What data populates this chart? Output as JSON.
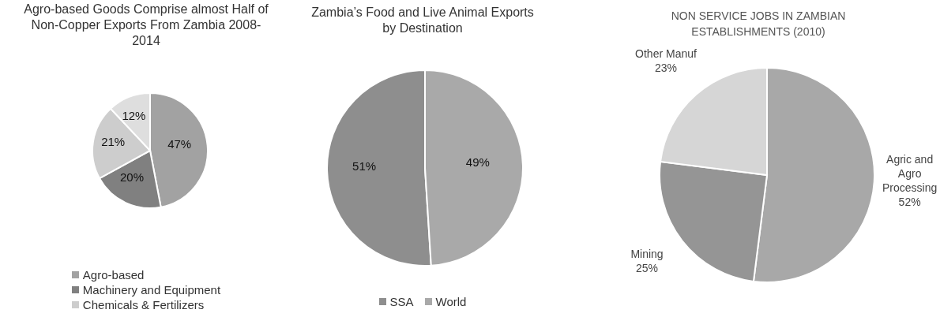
{
  "chart_data": [
    {
      "type": "pie",
      "title": "Agro-based Goods Comprise almost Half of Non-Copper Exports From Zambia 2008-2014",
      "categories": [
        "Agro-based",
        "Machinery and Equipment",
        "Chemicals & Fertilizers",
        null
      ],
      "values": [
        47,
        20,
        21,
        12
      ],
      "colors": [
        "#a2a2a2",
        "#808080",
        "#cdcdcd",
        "#dedede"
      ],
      "value_labels": [
        "47%",
        "20%",
        "21%",
        "12%"
      ],
      "legend": "bottom"
    },
    {
      "type": "pie",
      "title": "Zambia’s Food and Live Animal Exports by Destination",
      "categories": [
        "SSA",
        "World"
      ],
      "values": [
        51,
        49
      ],
      "colors": [
        "#8e8e8e",
        "#a9a9a9"
      ],
      "value_labels": [
        "51%",
        "49%"
      ],
      "legend": "bottom"
    },
    {
      "type": "pie",
      "title": "NON SERVICE JOBS IN ZAMBIAN ESTABLISHMENTS (2010)",
      "categories": [
        "Agric and Agro Processing",
        "Mining",
        "Other Manuf"
      ],
      "values": [
        52,
        25,
        23
      ],
      "colors": [
        "#a8a8a8",
        "#959595",
        "#d6d6d6"
      ],
      "value_labels": [
        "52%",
        "25%",
        "23%"
      ],
      "legend": false
    }
  ]
}
